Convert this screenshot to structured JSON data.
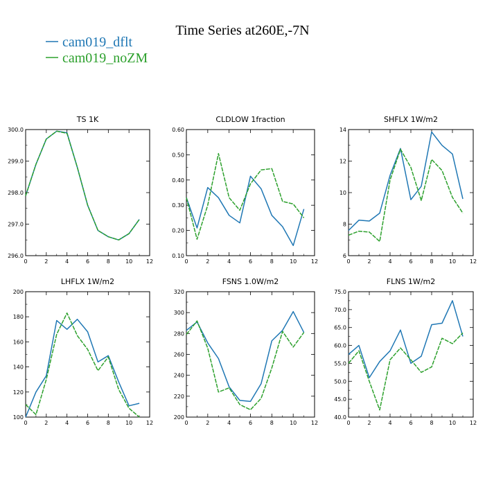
{
  "figure": {
    "title": "Time Series at260E,-7N"
  },
  "legend": [
    {
      "name": "cam019_dflt",
      "color": "#1f77b4"
    },
    {
      "name": "cam019_noZM",
      "color": "#2ca02c"
    }
  ],
  "chart_data": [
    {
      "type": "line",
      "title": "TS   1K",
      "x": [
        0,
        1,
        2,
        3,
        4,
        5,
        6,
        7,
        8,
        9,
        10,
        11
      ],
      "xlim": [
        0,
        12
      ],
      "xticks": [
        0,
        2,
        4,
        6,
        8,
        10,
        12
      ],
      "ylim": [
        296.0,
        300.0
      ],
      "yticks": [
        "296.0",
        "297.0",
        "298.0",
        "299.0",
        "300.0"
      ],
      "series": [
        {
          "name": "cam019_dflt",
          "values": [
            297.9,
            298.9,
            299.7,
            299.95,
            299.9,
            298.8,
            297.6,
            296.8,
            296.6,
            296.5,
            296.7,
            297.15
          ]
        },
        {
          "name": "cam019_noZM",
          "values": [
            297.9,
            298.9,
            299.7,
            299.95,
            299.88,
            298.8,
            297.6,
            296.8,
            296.6,
            296.5,
            296.7,
            297.15
          ]
        }
      ]
    },
    {
      "type": "line",
      "title": "CLDLOW   1fraction",
      "x": [
        0,
        1,
        2,
        3,
        4,
        5,
        6,
        7,
        8,
        9,
        10,
        11
      ],
      "xlim": [
        0,
        12
      ],
      "xticks": [
        0,
        2,
        4,
        6,
        8,
        10,
        12
      ],
      "ylim": [
        0.1,
        0.6
      ],
      "yticks": [
        "0.10",
        "0.20",
        "0.30",
        "0.40",
        "0.50",
        "0.60"
      ],
      "series": [
        {
          "name": "cam019_dflt",
          "values": [
            0.33,
            0.21,
            0.37,
            0.33,
            0.26,
            0.23,
            0.415,
            0.365,
            0.26,
            0.215,
            0.14,
            0.285
          ]
        },
        {
          "name": "cam019_noZM",
          "values": [
            0.33,
            0.165,
            0.3,
            0.505,
            0.33,
            0.28,
            0.385,
            0.44,
            0.445,
            0.315,
            0.305,
            0.25
          ]
        }
      ]
    },
    {
      "type": "line",
      "title": "SHFLX   1W/m2",
      "x": [
        0,
        1,
        2,
        3,
        4,
        5,
        6,
        7,
        8,
        9,
        10,
        11
      ],
      "xlim": [
        0,
        12
      ],
      "xticks": [
        0,
        2,
        4,
        6,
        8,
        10,
        12
      ],
      "ylim": [
        6,
        14
      ],
      "yticks": [
        "6",
        "8",
        "10",
        "12",
        "14"
      ],
      "series": [
        {
          "name": "cam019_dflt",
          "values": [
            7.6,
            8.25,
            8.2,
            8.7,
            11.1,
            12.8,
            9.55,
            10.4,
            13.85,
            13.0,
            12.45,
            9.6
          ]
        },
        {
          "name": "cam019_noZM",
          "values": [
            7.3,
            7.55,
            7.5,
            6.9,
            10.8,
            12.75,
            11.6,
            9.5,
            12.1,
            11.4,
            9.7,
            8.7
          ]
        }
      ]
    },
    {
      "type": "line",
      "title": "LHFLX   1W/m2",
      "x": [
        0,
        1,
        2,
        3,
        4,
        5,
        6,
        7,
        8,
        9,
        10,
        11
      ],
      "xlim": [
        0,
        12
      ],
      "xticks": [
        0,
        2,
        4,
        6,
        8,
        10,
        12
      ],
      "ylim": [
        100,
        200
      ],
      "yticks": [
        "100",
        "120",
        "140",
        "160",
        "180",
        "200"
      ],
      "series": [
        {
          "name": "cam019_dflt",
          "values": [
            100,
            120,
            133,
            177,
            170,
            178,
            168,
            144,
            149,
            128,
            109,
            111
          ]
        },
        {
          "name": "cam019_noZM",
          "values": [
            110,
            102,
            130,
            166,
            183,
            165,
            154,
            137,
            148,
            122,
            107,
            100
          ]
        }
      ]
    },
    {
      "type": "line",
      "title": "FSNS   1.0W/m2",
      "x": [
        0,
        1,
        2,
        3,
        4,
        5,
        6,
        7,
        8,
        9,
        10,
        11
      ],
      "xlim": [
        0,
        12
      ],
      "xticks": [
        0,
        2,
        4,
        6,
        8,
        10,
        12
      ],
      "ylim": [
        200,
        320
      ],
      "yticks": [
        "200",
        "220",
        "240",
        "260",
        "280",
        "300",
        "320"
      ],
      "series": [
        {
          "name": "cam019_dflt",
          "values": [
            283,
            291,
            271,
            256,
            229,
            216,
            215,
            232,
            273,
            283,
            301,
            281
          ]
        },
        {
          "name": "cam019_noZM",
          "values": [
            279,
            292,
            266,
            224,
            228,
            212,
            207,
            218,
            247,
            282,
            267,
            281
          ]
        }
      ]
    },
    {
      "type": "line",
      "title": "FLNS   1W/m2",
      "x": [
        0,
        1,
        2,
        3,
        4,
        5,
        6,
        7,
        8,
        9,
        10,
        11
      ],
      "xlim": [
        0,
        12
      ],
      "xticks": [
        0,
        2,
        4,
        6,
        8,
        10,
        12
      ],
      "ylim": [
        40.0,
        75.0
      ],
      "yticks": [
        "40.0",
        "45.0",
        "50.0",
        "55.0",
        "60.0",
        "65.0",
        "70.0",
        "75.0"
      ],
      "series": [
        {
          "name": "cam019_dflt",
          "values": [
            57.5,
            60.0,
            51.0,
            55.5,
            58.5,
            64.3,
            55.0,
            57.0,
            65.8,
            66.2,
            72.5,
            62.5
          ]
        },
        {
          "name": "cam019_noZM",
          "values": [
            55.0,
            58.5,
            50.0,
            42.0,
            56.0,
            59.3,
            56.0,
            52.5,
            54.0,
            62.0,
            60.5,
            63.5
          ]
        }
      ]
    }
  ]
}
